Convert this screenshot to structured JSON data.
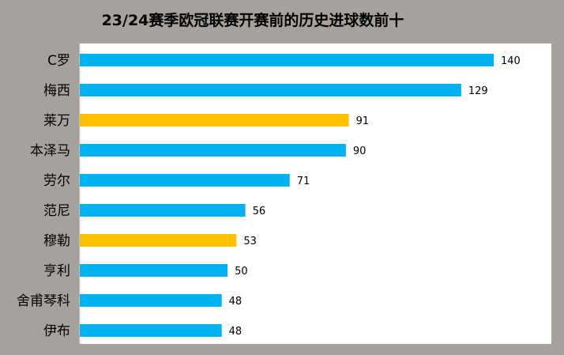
{
  "chart_data": {
    "type": "bar",
    "orientation": "horizontal",
    "title": "23/24赛季欧冠联赛开赛前的历史进球数前十",
    "xlabel": "",
    "ylabel": "",
    "xlim": [
      0,
      150
    ],
    "grid": false,
    "legend": "none",
    "categories": [
      "C罗",
      "梅西",
      "莱万",
      "本泽马",
      "劳尔",
      "范尼",
      "穆勒",
      "亨利",
      "舍甫琴科",
      "伊布"
    ],
    "values": [
      140,
      129,
      91,
      90,
      71,
      56,
      53,
      50,
      48,
      48
    ],
    "bar_colors": [
      "#00b0f0",
      "#00b0f0",
      "#ffc000",
      "#00b0f0",
      "#00b0f0",
      "#00b0f0",
      "#ffc000",
      "#00b0f0",
      "#00b0f0",
      "#00b0f0"
    ]
  },
  "colors": {
    "background": "#a5a19e",
    "plot_area": "#ffffff",
    "highlight": "#ffc000",
    "default_bar": "#00b0f0"
  }
}
